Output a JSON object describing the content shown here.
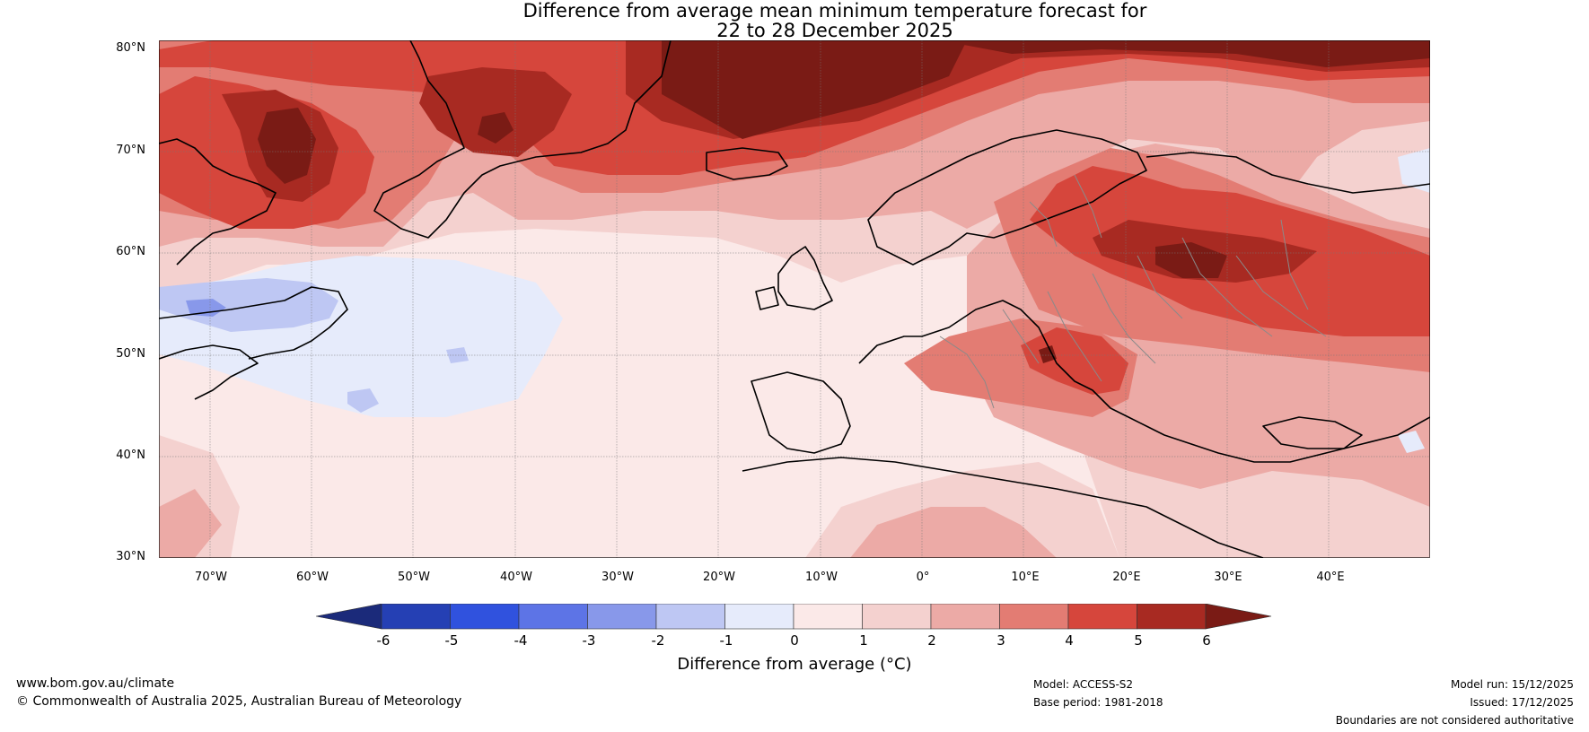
{
  "title": {
    "line1": "Difference from average mean minimum temperature forecast for",
    "line2": "22 to 28 December 2025"
  },
  "map": {
    "lat_labels": [
      "80°N",
      "70°N",
      "60°N",
      "50°N",
      "40°N",
      "30°N"
    ],
    "lon_labels": [
      "70°W",
      "60°W",
      "50°W",
      "40°W",
      "30°W",
      "20°W",
      "10°W",
      "0°",
      "10°E",
      "20°E",
      "30°E",
      "40°E"
    ],
    "extent": {
      "lon": [
        -75,
        50
      ],
      "lat": [
        30,
        81
      ]
    }
  },
  "colorbar": {
    "label": "Difference from average (°C)",
    "ticks": [
      "-6",
      "-5",
      "-4",
      "-3",
      "-2",
      "-1",
      "0",
      "1",
      "2",
      "3",
      "4",
      "5",
      "6"
    ],
    "colors": [
      "#1b2a7a",
      "#2540b4",
      "#3052de",
      "#5d74e6",
      "#8898ea",
      "#bec7f3",
      "#e6ebfb",
      "#fbe9e8",
      "#f4d1cf",
      "#ecaaa6",
      "#e37c73",
      "#d6463c",
      "#a82a22",
      "#7a1b15"
    ]
  },
  "footer": {
    "website": "www.bom.gov.au/climate",
    "copyright": "© Commonwealth of Australia 2025, Australian Bureau of Meteorology",
    "model": "Model: ACCESS-S2",
    "base_period": "Base period: 1981-2018",
    "model_run": "Model run: 15/12/2025",
    "issued": "Issued: 17/12/2025",
    "disclaimer": "Boundaries are not considered authoritative"
  }
}
